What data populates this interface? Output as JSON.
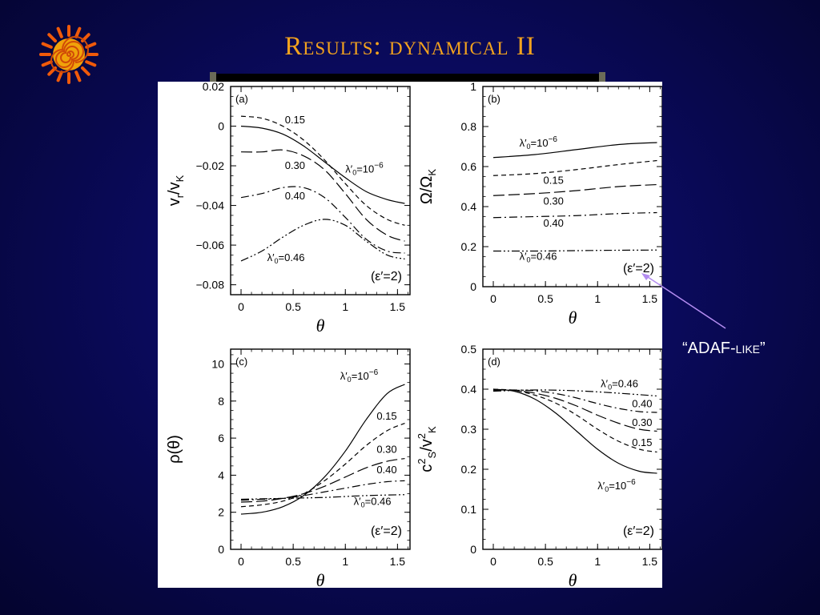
{
  "title": "Results: dynamical II",
  "annotation": {
    "label": "“ADAF-like”",
    "color": "#b38cf0"
  },
  "colors": {
    "title": "#f2a21e",
    "logo": "#f05a0a",
    "background": "#0a0a5c",
    "figure": "#ffffff"
  },
  "chart_data": [
    {
      "type": "line",
      "panel": "(a)",
      "xlabel": "θ",
      "ylabel_main": "v",
      "ylabel_sub1": "r",
      "ylabel_sep": "/v",
      "ylabel_sub2": "K",
      "xlim": [
        -0.1,
        1.62
      ],
      "ylim": [
        -0.085,
        0.02
      ],
      "xticks": [
        "0",
        "0.5",
        "1",
        "1.5"
      ],
      "xtick_values": [
        0,
        0.5,
        1,
        1.5
      ],
      "yticks": [
        "0.02",
        "0",
        "−0.02",
        "−0.04",
        "−0.06",
        "−0.08"
      ],
      "ytick_values": [
        0.02,
        0,
        -0.02,
        -0.04,
        -0.06,
        -0.08
      ],
      "epsilon_label": "(ε′=2)",
      "series": [
        {
          "style": "solid",
          "x": [
            0,
            0.2,
            0.4,
            0.6,
            0.8,
            1.0,
            1.2,
            1.4,
            1.57
          ],
          "y": [
            0.0,
            -0.001,
            -0.004,
            -0.01,
            -0.018,
            -0.026,
            -0.033,
            -0.037,
            -0.039
          ]
        },
        {
          "style": "dash",
          "x": [
            0,
            0.2,
            0.4,
            0.6,
            0.8,
            1.0,
            1.2,
            1.4,
            1.57
          ],
          "y": [
            0.005,
            0.004,
            0.0,
            -0.007,
            -0.017,
            -0.029,
            -0.04,
            -0.047,
            -0.05
          ]
        },
        {
          "style": "longdash",
          "x": [
            0,
            0.2,
            0.4,
            0.6,
            0.8,
            1.0,
            1.2,
            1.4,
            1.57
          ],
          "y": [
            -0.013,
            -0.013,
            -0.012,
            -0.015,
            -0.022,
            -0.034,
            -0.047,
            -0.055,
            -0.058
          ]
        },
        {
          "style": "dashdot",
          "x": [
            0,
            0.2,
            0.4,
            0.6,
            0.8,
            1.0,
            1.2,
            1.4,
            1.57
          ],
          "y": [
            -0.036,
            -0.034,
            -0.031,
            -0.031,
            -0.036,
            -0.046,
            -0.057,
            -0.063,
            -0.064
          ]
        },
        {
          "style": "dashdotdot",
          "x": [
            0,
            0.2,
            0.4,
            0.6,
            0.8,
            1.0,
            1.2,
            1.4,
            1.57
          ],
          "y": [
            -0.068,
            -0.063,
            -0.056,
            -0.05,
            -0.047,
            -0.05,
            -0.058,
            -0.065,
            -0.067
          ]
        }
      ],
      "labels": [
        {
          "text": "0.15",
          "x": 0.42,
          "y": 0.0015
        },
        {
          "text": "0.30",
          "x": 0.42,
          "y": -0.0215
        },
        {
          "lambda": true,
          "text": "=10",
          "sup": "−6",
          "x": 1.0,
          "y": -0.0235
        },
        {
          "text": "0.40",
          "x": 0.42,
          "y": -0.037
        },
        {
          "lambda": true,
          "text": "=0.46",
          "x": 0.25,
          "y": -0.068
        }
      ]
    },
    {
      "type": "line",
      "panel": "(b)",
      "xlabel": "θ",
      "ylabel_main": "Ω/Ω",
      "ylabel_sub1": "K",
      "xlim": [
        -0.1,
        1.62
      ],
      "ylim": [
        0,
        1
      ],
      "xticks": [
        "0",
        "0.5",
        "1",
        "1.5"
      ],
      "xtick_values": [
        0,
        0.5,
        1,
        1.5
      ],
      "yticks": [
        "1",
        "0.8",
        "0.6",
        "0.4",
        "0.2",
        "0"
      ],
      "ytick_values": [
        1,
        0.8,
        0.6,
        0.4,
        0.2,
        0
      ],
      "epsilon_label": "(ε′=2)",
      "series": [
        {
          "style": "solid",
          "x": [
            0,
            0.4,
            0.8,
            1.2,
            1.57
          ],
          "y": [
            0.645,
            0.66,
            0.685,
            0.71,
            0.72
          ]
        },
        {
          "style": "dash",
          "x": [
            0,
            0.4,
            0.8,
            1.2,
            1.57
          ],
          "y": [
            0.555,
            0.565,
            0.585,
            0.61,
            0.63
          ]
        },
        {
          "style": "longdash",
          "x": [
            0,
            0.4,
            0.8,
            1.2,
            1.57
          ],
          "y": [
            0.455,
            0.465,
            0.48,
            0.5,
            0.51
          ]
        },
        {
          "style": "dashdot",
          "x": [
            0,
            0.4,
            0.8,
            1.2,
            1.57
          ],
          "y": [
            0.345,
            0.35,
            0.355,
            0.365,
            0.37
          ]
        },
        {
          "style": "dashdotdot",
          "x": [
            0,
            0.4,
            0.8,
            1.2,
            1.57
          ],
          "y": [
            0.178,
            0.178,
            0.18,
            0.182,
            0.183
          ]
        }
      ],
      "labels": [
        {
          "lambda": true,
          "text": "=10",
          "sup": "−6",
          "x": 0.25,
          "y": 0.7
        },
        {
          "text": "0.15",
          "x": 0.48,
          "y": 0.515
        },
        {
          "text": "0.30",
          "x": 0.48,
          "y": 0.41
        },
        {
          "text": "0.40",
          "x": 0.48,
          "y": 0.3
        },
        {
          "lambda": true,
          "text": "=0.46",
          "x": 0.25,
          "y": 0.135
        }
      ]
    },
    {
      "type": "line",
      "panel": "(c)",
      "xlabel": "θ",
      "ylabel_main": "ρ(θ)",
      "xlim": [
        -0.1,
        1.62
      ],
      "ylim": [
        0,
        10.8
      ],
      "xticks": [
        "0",
        "0.5",
        "1",
        "1.5"
      ],
      "xtick_values": [
        0,
        0.5,
        1,
        1.5
      ],
      "yticks": [
        "10",
        "8",
        "6",
        "4",
        "2",
        "0"
      ],
      "ytick_values": [
        10,
        8,
        6,
        4,
        2,
        0
      ],
      "epsilon_label": "(ε′=2)",
      "series": [
        {
          "style": "solid",
          "x": [
            0,
            0.2,
            0.4,
            0.6,
            0.8,
            1.0,
            1.2,
            1.4,
            1.57
          ],
          "y": [
            1.9,
            2.0,
            2.3,
            2.9,
            3.9,
            5.3,
            7.0,
            8.4,
            8.9
          ]
        },
        {
          "style": "dash",
          "x": [
            0,
            0.2,
            0.4,
            0.6,
            0.8,
            1.0,
            1.2,
            1.4,
            1.57
          ],
          "y": [
            2.3,
            2.4,
            2.6,
            3.0,
            3.7,
            4.6,
            5.6,
            6.4,
            6.8
          ]
        },
        {
          "style": "longdash",
          "x": [
            0,
            0.2,
            0.4,
            0.6,
            0.8,
            1.0,
            1.2,
            1.4,
            1.57
          ],
          "y": [
            2.55,
            2.6,
            2.75,
            3.0,
            3.4,
            3.9,
            4.4,
            4.75,
            4.9
          ]
        },
        {
          "style": "dashdot",
          "x": [
            0,
            0.2,
            0.4,
            0.6,
            0.8,
            1.0,
            1.2,
            1.4,
            1.57
          ],
          "y": [
            2.65,
            2.7,
            2.75,
            2.9,
            3.1,
            3.3,
            3.5,
            3.65,
            3.7
          ]
        },
        {
          "style": "dashdotdot",
          "x": [
            0,
            0.4,
            0.8,
            1.2,
            1.57
          ],
          "y": [
            2.7,
            2.75,
            2.8,
            2.9,
            2.95
          ]
        }
      ],
      "labels": [
        {
          "lambda": true,
          "text": "=10",
          "sup": "−6",
          "x": 0.95,
          "y": 9.15
        },
        {
          "text": "0.15",
          "x": 1.3,
          "y": 7.0
        },
        {
          "text": "0.30",
          "x": 1.3,
          "y": 5.2
        },
        {
          "text": "0.40",
          "x": 1.3,
          "y": 4.1
        },
        {
          "lambda": true,
          "text": "=0.46",
          "x": 1.08,
          "y": 2.4
        }
      ]
    },
    {
      "type": "line",
      "panel": "(d)",
      "xlabel": "θ",
      "ylabel_main": "c",
      "ylabel_sub1": "S",
      "ylabel_sup1": "2",
      "ylabel_sep": "/v",
      "ylabel_sub2": "K",
      "ylabel_sup2": "2",
      "xlim": [
        -0.1,
        1.62
      ],
      "ylim": [
        0,
        0.5
      ],
      "xticks": [
        "0",
        "0.5",
        "1",
        "1.5"
      ],
      "xtick_values": [
        0,
        0.5,
        1,
        1.5
      ],
      "yticks": [
        "0.5",
        "0.4",
        "0.3",
        "0.2",
        "0.1",
        "0"
      ],
      "ytick_values": [
        0.5,
        0.4,
        0.3,
        0.2,
        0.1,
        0
      ],
      "epsilon_label": "(ε′=2)",
      "series": [
        {
          "style": "solid",
          "x": [
            0,
            0.2,
            0.4,
            0.6,
            0.8,
            1.0,
            1.2,
            1.4,
            1.57
          ],
          "y": [
            0.4,
            0.395,
            0.375,
            0.34,
            0.295,
            0.25,
            0.215,
            0.195,
            0.19
          ]
        },
        {
          "style": "dash",
          "x": [
            0,
            0.2,
            0.4,
            0.6,
            0.8,
            1.0,
            1.2,
            1.4,
            1.57
          ],
          "y": [
            0.4,
            0.397,
            0.385,
            0.365,
            0.335,
            0.3,
            0.27,
            0.25,
            0.243
          ]
        },
        {
          "style": "longdash",
          "x": [
            0,
            0.2,
            0.4,
            0.6,
            0.8,
            1.0,
            1.2,
            1.4,
            1.57
          ],
          "y": [
            0.398,
            0.397,
            0.39,
            0.377,
            0.358,
            0.335,
            0.315,
            0.3,
            0.295
          ]
        },
        {
          "style": "dashdot",
          "x": [
            0,
            0.2,
            0.4,
            0.6,
            0.8,
            1.0,
            1.2,
            1.4,
            1.57
          ],
          "y": [
            0.397,
            0.398,
            0.396,
            0.389,
            0.378,
            0.364,
            0.352,
            0.344,
            0.342
          ]
        },
        {
          "style": "dashdotdot",
          "x": [
            0,
            0.4,
            0.8,
            1.2,
            1.57
          ],
          "y": [
            0.395,
            0.398,
            0.396,
            0.39,
            0.383
          ]
        }
      ],
      "labels": [
        {
          "lambda": true,
          "text": "=0.46",
          "x": 1.03,
          "y": 0.405
        },
        {
          "text": "0.40",
          "x": 1.33,
          "y": 0.355
        },
        {
          "text": "0.30",
          "x": 1.33,
          "y": 0.308
        },
        {
          "text": "0.15",
          "x": 1.33,
          "y": 0.258
        },
        {
          "lambda": true,
          "text": "=10",
          "sup": "−6",
          "x": 1.0,
          "y": 0.15
        }
      ]
    }
  ]
}
